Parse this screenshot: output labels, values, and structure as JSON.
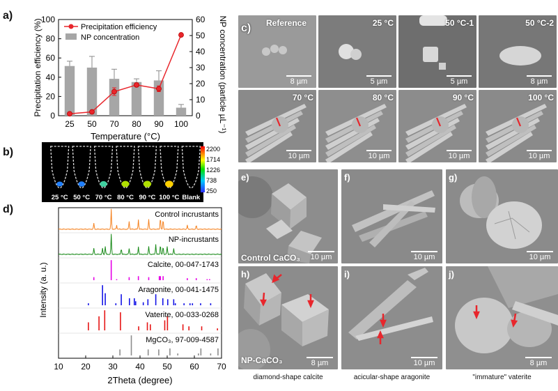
{
  "panel_labels": {
    "a": "a)",
    "b": "b)",
    "c": "c)",
    "d": "d)",
    "e": "e)",
    "f": "f)",
    "g": "g)",
    "h": "h)",
    "i": "i)",
    "j": "j)"
  },
  "chart_data": [
    {
      "id": "panel-a",
      "type": "bar+line",
      "xlabel": "Temperature (°C)",
      "ylabel_left": "Precipitation efficiency (%)",
      "ylabel_right": "NP concentration (particle µL⁻¹)",
      "categories": [
        "25",
        "50",
        "70",
        "80",
        "90",
        "100"
      ],
      "ylim_left": [
        0,
        100
      ],
      "ylim_right": [
        0,
        60
      ],
      "yticks_left": [
        "0",
        "20",
        "40",
        "60",
        "80",
        "100"
      ],
      "yticks_right": [
        "0",
        "10",
        "20",
        "30",
        "40",
        "50",
        "60"
      ],
      "series": [
        {
          "name": "Precipitation efficiency",
          "axis": "left",
          "type": "line",
          "color": "#e8262c",
          "values": [
            2,
            4,
            25,
            32,
            28,
            84
          ],
          "errors": [
            0,
            0,
            4,
            2,
            3,
            0
          ]
        },
        {
          "name": "NP concentration",
          "axis": "right",
          "type": "bar",
          "color": "#a6a6a6",
          "values": [
            31,
            30,
            23,
            21,
            22,
            5
          ],
          "errors": [
            3,
            7,
            6,
            2,
            6,
            2
          ]
        }
      ],
      "legend": "top-left"
    },
    {
      "id": "panel-d",
      "type": "line",
      "xlabel": "2Theta (degree)",
      "ylabel": "Intensity (a. u.)",
      "xlim": [
        10,
        70
      ],
      "xticks": [
        "10",
        "20",
        "30",
        "40",
        "50",
        "60",
        "70"
      ],
      "series": [
        {
          "name": "Control incrustants",
          "color": "#f58220",
          "peaks": [
            [
              23.0,
              0.3
            ],
            [
              29.4,
              1.0
            ],
            [
              31.4,
              0.2
            ],
            [
              36.0,
              0.4
            ],
            [
              39.4,
              0.5
            ],
            [
              43.2,
              0.5
            ],
            [
              47.5,
              0.6
            ],
            [
              48.5,
              0.5
            ],
            [
              57.4,
              0.2
            ],
            [
              60.7,
              0.2
            ]
          ]
        },
        {
          "name": "NP-incrustants",
          "color": "#1a8a1a",
          "peaks": [
            [
              23.0,
              0.3
            ],
            [
              26.2,
              0.3
            ],
            [
              27.2,
              0.4
            ],
            [
              29.4,
              1.0
            ],
            [
              33.1,
              0.3
            ],
            [
              36.0,
              0.3
            ],
            [
              39.4,
              0.4
            ],
            [
              43.2,
              0.4
            ],
            [
              45.8,
              0.5
            ],
            [
              47.5,
              0.5
            ],
            [
              48.5,
              0.4
            ],
            [
              50.0,
              0.4
            ],
            [
              52.4,
              0.3
            ]
          ]
        },
        {
          "name": "Calcite, 00-047-1743",
          "color": "#e600e6",
          "sticks": [
            [
              23.0,
              0.15
            ],
            [
              29.4,
              1.0
            ],
            [
              31.4,
              0.05
            ],
            [
              36.0,
              0.15
            ],
            [
              39.4,
              0.2
            ],
            [
              43.2,
              0.15
            ],
            [
              47.1,
              0.2
            ],
            [
              47.5,
              0.2
            ],
            [
              48.5,
              0.2
            ],
            [
              57.4,
              0.1
            ],
            [
              60.7,
              0.1
            ],
            [
              64.7,
              0.05
            ],
            [
              65.6,
              0.05
            ]
          ]
        },
        {
          "name": "Aragonite, 00-041-1475",
          "color": "#1414e6",
          "sticks": [
            [
              21.0,
              0.1
            ],
            [
              26.2,
              1.0
            ],
            [
              27.2,
              0.6
            ],
            [
              31.1,
              0.1
            ],
            [
              33.1,
              0.55
            ],
            [
              36.1,
              0.35
            ],
            [
              37.9,
              0.35
            ],
            [
              38.4,
              0.2
            ],
            [
              41.2,
              0.15
            ],
            [
              42.9,
              0.3
            ],
            [
              45.8,
              0.55
            ],
            [
              48.4,
              0.35
            ],
            [
              50.2,
              0.3
            ],
            [
              52.4,
              0.3
            ],
            [
              53.0,
              0.1
            ],
            [
              56.2,
              0.1
            ],
            [
              58.4,
              0.1
            ],
            [
              59.3,
              0.1
            ],
            [
              62.3,
              0.1
            ],
            [
              66.0,
              0.1
            ]
          ]
        },
        {
          "name": "Vaterite, 00-033-0268",
          "color": "#e61414",
          "sticks": [
            [
              21.0,
              0.4
            ],
            [
              24.9,
              0.7
            ],
            [
              27.0,
              1.0
            ],
            [
              32.8,
              0.9
            ],
            [
              39.5,
              0.2
            ],
            [
              42.7,
              0.4
            ],
            [
              43.8,
              0.3
            ],
            [
              49.1,
              0.5
            ],
            [
              50.1,
              0.7
            ],
            [
              55.8,
              0.3
            ],
            [
              58.0,
              0.2
            ],
            [
              62.7,
              0.2
            ],
            [
              68.5,
              0.1
            ]
          ]
        },
        {
          "name": "MgCO₃, 97-009-4587",
          "color": "#8c8c8c",
          "sticks": [
            [
              32.6,
              0.3
            ],
            [
              36.8,
              1.0
            ],
            [
              43.0,
              0.3
            ],
            [
              46.9,
              0.3
            ],
            [
              51.0,
              0.35
            ],
            [
              53.9,
              0.1
            ],
            [
              61.5,
              0.1
            ],
            [
              62.4,
              0.35
            ],
            [
              66.0,
              0.1
            ],
            [
              68.7,
              0.35
            ]
          ]
        }
      ]
    }
  ],
  "panel_b": {
    "colorbar_ticks": [
      "2200",
      "1714",
      "1226",
      "738",
      "250"
    ],
    "tube_labels": [
      "25 °C",
      "50 °C",
      "70 °C",
      "80 °C",
      "90 °C",
      "100 °C",
      "Blank"
    ],
    "intensities": [
      0.25,
      0.35,
      0.55,
      0.75,
      0.8,
      0.9,
      0.05
    ]
  },
  "panel_c": {
    "tiles": [
      {
        "label": "Reference",
        "scale": "8 µm"
      },
      {
        "label": "25 °C",
        "scale": "5 µm"
      },
      {
        "label": "50 °C-1",
        "scale": "5 µm"
      },
      {
        "label": "50 °C-2",
        "scale": "8 µm"
      },
      {
        "label": "70 °C",
        "scale": "10 µm"
      },
      {
        "label": "80 °C",
        "scale": "10 µm"
      },
      {
        "label": "90 °C",
        "scale": "10 µm"
      },
      {
        "label": "100 °C",
        "scale": "10 µm"
      }
    ]
  },
  "sem_panels": {
    "e": {
      "scale": "10 µm",
      "label": "Control CaCO₃"
    },
    "f": {
      "scale": "10 µm"
    },
    "g": {
      "scale": "10 µm"
    },
    "h": {
      "scale": "8 µm",
      "label": "NP-CaCO₃"
    },
    "i": {
      "scale": "10 µm"
    },
    "j": {
      "scale": "8 µm"
    }
  },
  "captions": {
    "h": "diamond-shape calcite",
    "i": "acicular-shape aragonite",
    "j": "\"immature\" vaterite"
  },
  "colors": {
    "accent_red": "#e8262c",
    "bar_gray": "#a6a6a6",
    "sem_bg": "#8a8a8a"
  }
}
